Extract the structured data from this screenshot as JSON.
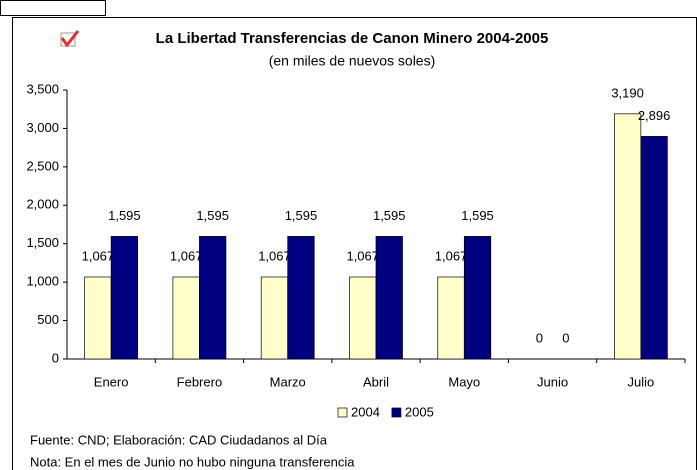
{
  "chart_data": {
    "type": "bar",
    "title": "La Libertad Transferencias de Canon Minero 2004-2005",
    "subtitle": "(en miles de nuevos soles)",
    "categories": [
      "Enero",
      "Febrero",
      "Marzo",
      "Abril",
      "Mayo",
      "Junio",
      "Julio"
    ],
    "series": [
      {
        "name": "2004",
        "color": "#ffffcc",
        "values": [
          1067,
          1067,
          1067,
          1067,
          1067,
          0,
          3190
        ],
        "value_labels": [
          "1,067",
          "1,067",
          "1,067",
          "1,067",
          "1,067",
          "0",
          "3,190"
        ]
      },
      {
        "name": "2005",
        "color": "#000080",
        "values": [
          1595,
          1595,
          1595,
          1595,
          1595,
          0,
          2896
        ],
        "value_labels": [
          "1,595",
          "1,595",
          "1,595",
          "1,595",
          "1,595",
          "0",
          "2,896"
        ]
      }
    ],
    "ylim": [
      0,
      3500
    ],
    "yticks": [
      0,
      500,
      {
        "value": 1000,
        "label": "1,000"
      },
      {
        "value": 1500,
        "label": "1,500"
      },
      {
        "value": 2000,
        "label": "2,000"
      },
      {
        "value": 2500,
        "label": "2,500"
      },
      {
        "value": 3000,
        "label": "3,000"
      },
      {
        "value": 3500,
        "label": "3,500"
      }
    ],
    "legend": "bottom",
    "notes": [
      "Fuente: CND; Elaboración: CAD Ciudadanos al Día",
      "Nota: En el mes de Junio no hubo ninguna transferencia"
    ]
  }
}
